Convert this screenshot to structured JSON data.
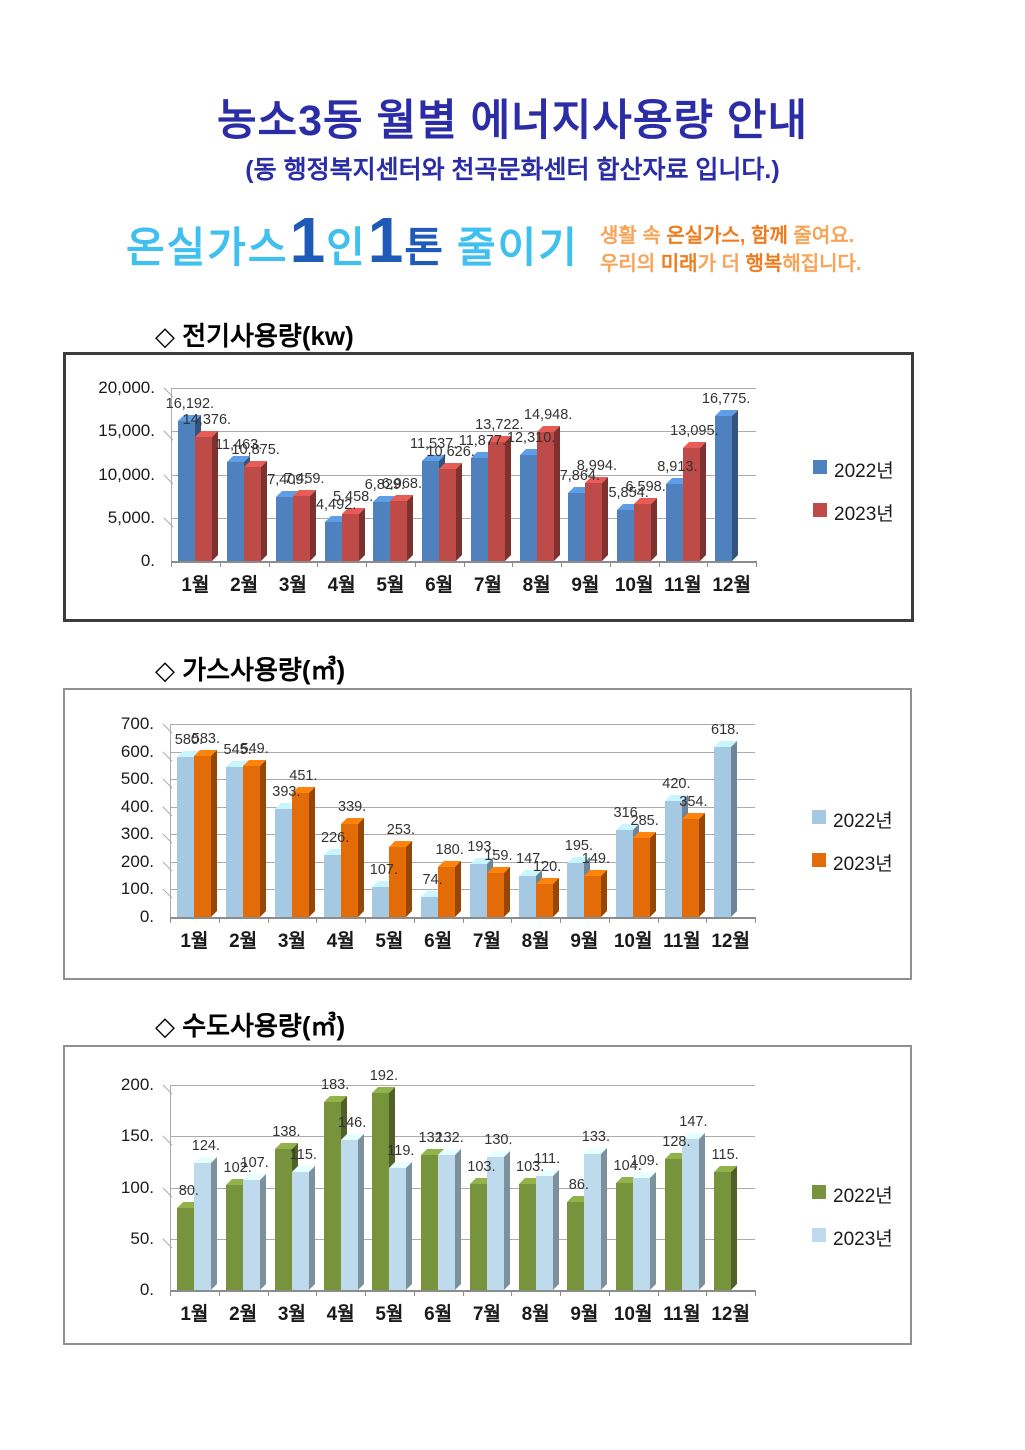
{
  "page": {
    "title": "농소3동 월별 에너지사용량 안내",
    "subtitle": "(동 행정복지센터와 천곡문화센터 합산자료 입니다.)",
    "logo": {
      "greenhouse": "온실가스",
      "one1": "1",
      "person": "인",
      "one2": "1",
      "ton": "톤",
      "reduce": "줄이기"
    },
    "slogan_line1": [
      {
        "t": "생활 속 ",
        "b": false
      },
      {
        "t": "온실가스,",
        "b": true
      },
      {
        "t": " 함께",
        "b": true
      },
      {
        "t": " 줄여요.",
        "b": false
      }
    ],
    "slogan_line2": [
      {
        "t": "우리의 ",
        "b": false
      },
      {
        "t": "미래",
        "b": true
      },
      {
        "t": "가 더 ",
        "b": false
      },
      {
        "t": "행복",
        "b": true
      },
      {
        "t": "해집니다.",
        "b": false
      }
    ]
  },
  "chart_data": [
    {
      "type": "bar",
      "title": "◇ 전기사용량(kw)",
      "categories": [
        "1월",
        "2월",
        "3월",
        "4월",
        "5월",
        "6월",
        "7월",
        "8월",
        "9월",
        "10월",
        "11월",
        "12월"
      ],
      "series": [
        {
          "name": "2022년",
          "color": "#4E81BD",
          "values": [
            16192,
            11463,
            7409,
            4492,
            6829,
            11537,
            11877,
            12310,
            7864,
            5854,
            8913,
            16775
          ]
        },
        {
          "name": "2023년",
          "color": "#BE4B48",
          "values": [
            14376,
            10875,
            7459,
            5458,
            6968,
            10626,
            13722,
            14948,
            8994,
            6598,
            13095,
            null
          ]
        }
      ],
      "ylim": [
        0,
        20000
      ],
      "ystep": 5000,
      "ytick_labels": [
        "0.",
        "5,000.",
        "10,000.",
        "15,000.",
        "20,000."
      ],
      "label_format": "#,##0.",
      "grid": true,
      "legend_position": "right",
      "xlabel": "",
      "ylabel": ""
    },
    {
      "type": "bar",
      "title": "◇ 가스사용량(㎥)",
      "categories": [
        "1월",
        "2월",
        "3월",
        "4월",
        "5월",
        "6월",
        "7월",
        "8월",
        "9월",
        "10월",
        "11월",
        "12월"
      ],
      "series": [
        {
          "name": "2022년",
          "color": "#A5C9E3",
          "values": [
            580,
            545,
            393,
            226,
            107,
            74,
            193,
            147,
            195,
            316,
            420,
            618
          ]
        },
        {
          "name": "2023년",
          "color": "#E36C09",
          "values": [
            583,
            549,
            451,
            339,
            253,
            180,
            159,
            120,
            149,
            285,
            354,
            null
          ]
        }
      ],
      "ylim": [
        0,
        700
      ],
      "ystep": 100,
      "ytick_labels": [
        "0.",
        "100.",
        "200.",
        "300.",
        "400.",
        "500.",
        "600.",
        "700."
      ],
      "label_format": "#,##0.",
      "grid": true,
      "legend_position": "right",
      "xlabel": "",
      "ylabel": ""
    },
    {
      "type": "bar",
      "title": "◇ 수도사용량(㎥)",
      "categories": [
        "1월",
        "2월",
        "3월",
        "4월",
        "5월",
        "6월",
        "7월",
        "8월",
        "9월",
        "10월",
        "11월",
        "12월"
      ],
      "series": [
        {
          "name": "2022년",
          "color": "#77933C",
          "values": [
            80,
            102,
            138,
            183,
            192,
            132,
            103,
            103,
            86,
            104,
            128,
            115
          ]
        },
        {
          "name": "2023년",
          "color": "#BDDBEC",
          "values": [
            124,
            107,
            115,
            146,
            119,
            132,
            130,
            111,
            133,
            109,
            147,
            null
          ]
        }
      ],
      "ylim": [
        0,
        200
      ],
      "ystep": 50,
      "ytick_labels": [
        "0.",
        "50.",
        "100.",
        "150.",
        "200."
      ],
      "label_format": "#,##0.",
      "grid": true,
      "legend_position": "right",
      "xlabel": "",
      "ylabel": ""
    }
  ]
}
